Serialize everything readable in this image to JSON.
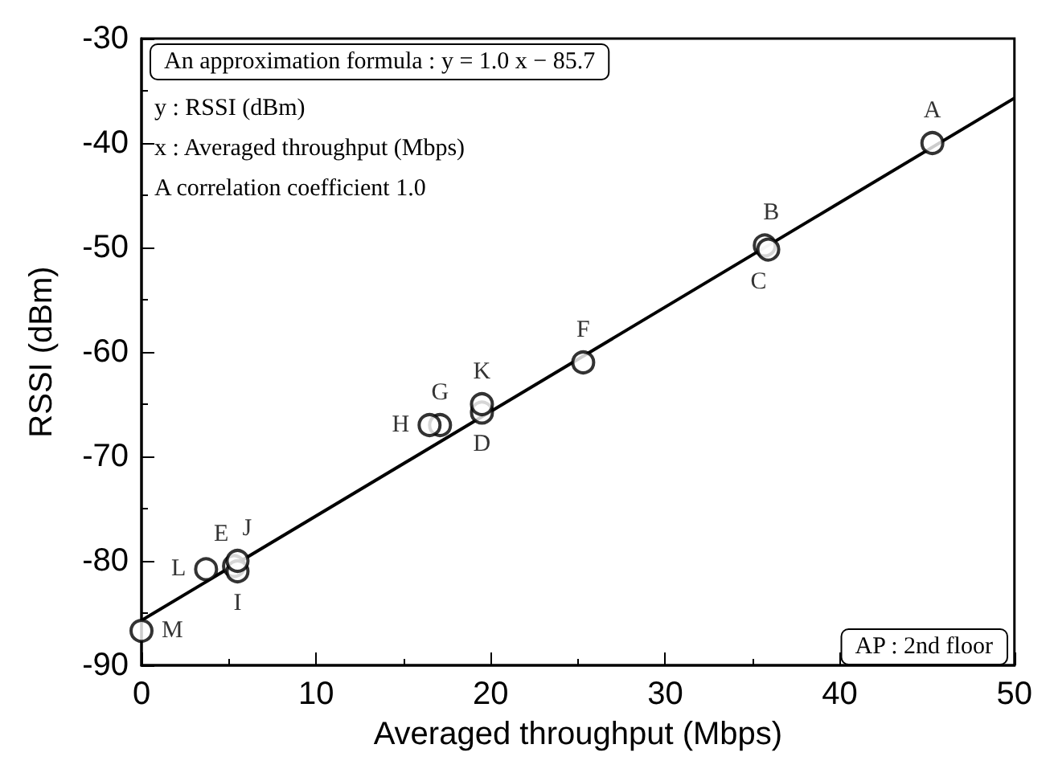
{
  "chart_data": {
    "type": "scatter",
    "xlabel": "Averaged throughput (Mbps)",
    "ylabel": "RSSI (dBm)",
    "xlim": [
      0,
      50
    ],
    "xticks": [
      0,
      10,
      20,
      30,
      40,
      50
    ],
    "ylim": [
      -90,
      -30
    ],
    "yticks": [
      -90,
      -80,
      -70,
      -60,
      -50,
      -40,
      -30
    ],
    "grid": false,
    "marker": "circle",
    "series": [
      {
        "color": "#000000",
        "x": [
          45.3,
          35.7,
          35.9,
          19.5,
          5.3,
          25.3,
          17.1,
          16.5,
          5.5,
          5.5,
          19.5,
          3.7,
          0
        ],
        "values": [
          -40,
          -49.8,
          -50.2,
          -65.8,
          -80.5,
          -61,
          -67,
          -67,
          -81,
          -80,
          -65,
          -80.8,
          -86.7
        ],
        "value_labels": [
          "A",
          "B",
          "C",
          "D",
          "E",
          "F",
          "G",
          "H",
          "I",
          "J",
          "K",
          "L",
          "M"
        ]
      },
      {
        "type": "line",
        "color": "#000000",
        "x": [
          0,
          50
        ],
        "values": [
          -85.7,
          -35.7
        ],
        "marker": "none",
        "line_style": "solid"
      }
    ],
    "annotations": [
      "An approximation formula : y = 1.0 x − 85.7",
      "y : RSSI (dBm)",
      "x : Averaged throughput (Mbps)",
      "A correlation coefficient 1.0",
      "AP : 2nd floor"
    ]
  }
}
